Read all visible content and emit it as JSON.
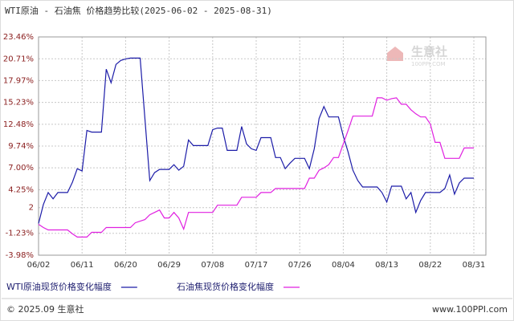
{
  "chart_data": {
    "type": "line",
    "title": "WTI原油 - 石油焦 价格趋势比较(2025-06-02 - 2025-08-31)",
    "categories": [
      "06/02",
      null,
      null,
      null,
      null,
      null,
      null,
      null,
      null,
      "06/11",
      null,
      null,
      null,
      null,
      null,
      null,
      null,
      null,
      "06/20",
      null,
      null,
      null,
      null,
      null,
      null,
      null,
      null,
      "06/29",
      null,
      null,
      null,
      null,
      null,
      null,
      null,
      null,
      "07/08",
      null,
      null,
      null,
      null,
      null,
      null,
      null,
      null,
      "07/17",
      null,
      null,
      null,
      null,
      null,
      null,
      null,
      null,
      "07/26",
      null,
      null,
      null,
      null,
      null,
      null,
      null,
      null,
      "08/04",
      null,
      null,
      null,
      null,
      null,
      null,
      null,
      null,
      "08/13",
      null,
      null,
      null,
      null,
      null,
      null,
      null,
      null,
      "08/22",
      null,
      null,
      null,
      null,
      null,
      null,
      null,
      null,
      "08/31"
    ],
    "series": [
      {
        "name": "WTI原油现货价格变化幅度",
        "color": "#1c1ca8",
        "values": [
          0,
          2.4,
          3.9,
          3.1,
          3.9,
          3.9,
          3.9,
          5.2,
          6.9,
          6.6,
          11.7,
          11.5,
          11.5,
          11.5,
          19.4,
          17.7,
          20.0,
          20.5,
          20.7,
          20.8,
          20.8,
          20.8,
          13.1,
          5.4,
          6.4,
          6.8,
          6.8,
          6.8,
          7.4,
          6.7,
          7.2,
          10.5,
          9.8,
          9.8,
          9.8,
          9.8,
          11.8,
          12.0,
          12.0,
          9.2,
          9.2,
          9.2,
          12.2,
          10.0,
          9.4,
          9.2,
          10.8,
          10.8,
          10.8,
          8.3,
          8.3,
          6.9,
          7.6,
          8.2,
          8.2,
          8.2,
          6.9,
          9.4,
          13.2,
          14.7,
          13.4,
          13.4,
          13.4,
          11.0,
          9.0,
          6.7,
          5.4,
          4.6,
          4.6,
          4.6,
          4.6,
          3.9,
          2.7,
          4.7,
          4.7,
          4.7,
          3.1,
          3.9,
          1.4,
          2.9,
          3.9,
          3.9,
          3.9,
          3.9,
          4.4,
          6.1,
          3.7,
          5.1,
          5.7,
          5.7,
          5.7
        ]
      },
      {
        "name": "石油焦现货价格变化幅度",
        "color": "#e020e0",
        "values": [
          -0.1,
          -0.5,
          -0.8,
          -0.8,
          -0.8,
          -0.8,
          -0.8,
          -1.3,
          -1.7,
          -1.7,
          -1.7,
          -1.1,
          -1.1,
          -1.1,
          -0.5,
          -0.5,
          -0.5,
          -0.5,
          -0.5,
          -0.5,
          0.1,
          0.3,
          0.5,
          1.1,
          1.4,
          1.7,
          0.7,
          0.7,
          1.4,
          0.7,
          -0.7,
          1.4,
          1.4,
          1.4,
          1.4,
          1.4,
          1.4,
          2.3,
          2.3,
          2.3,
          2.3,
          2.3,
          3.3,
          3.3,
          3.3,
          3.3,
          3.9,
          3.9,
          3.9,
          4.4,
          4.4,
          4.4,
          4.4,
          4.4,
          4.4,
          4.4,
          5.7,
          5.7,
          6.7,
          7.0,
          7.4,
          8.3,
          8.3,
          10.0,
          11.7,
          13.5,
          13.5,
          13.5,
          13.5,
          13.5,
          15.8,
          15.8,
          15.5,
          15.7,
          15.8,
          15.0,
          15.0,
          14.3,
          13.8,
          13.4,
          13.4,
          12.5,
          10.2,
          10.2,
          8.2,
          8.2,
          8.2,
          8.2,
          9.5,
          9.5,
          9.5
        ]
      }
    ],
    "ylim": [
      -3.98,
      23.46
    ],
    "yticks": [
      {
        "value": 23.46,
        "label": "23.46%"
      },
      {
        "value": 20.71,
        "label": "20.71%"
      },
      {
        "value": 17.97,
        "label": "17.97%"
      },
      {
        "value": 15.23,
        "label": "15.23%"
      },
      {
        "value": 12.48,
        "label": "12.48%"
      },
      {
        "value": 9.74,
        "label": "9.74%"
      },
      {
        "value": 7.0,
        "label": "7.00%"
      },
      {
        "value": 4.25,
        "label": "4.25%"
      },
      2,
      {
        "value": -1.23,
        "label": "-1.23%"
      },
      {
        "value": -3.98,
        "label": "-3.98%"
      }
    ],
    "grid": true
  },
  "watermark": {
    "name": "生意社",
    "site": "100PPI.COM"
  },
  "footer": {
    "copyright": "© 2025.09 生意社",
    "site": "www.100PPI.com"
  }
}
